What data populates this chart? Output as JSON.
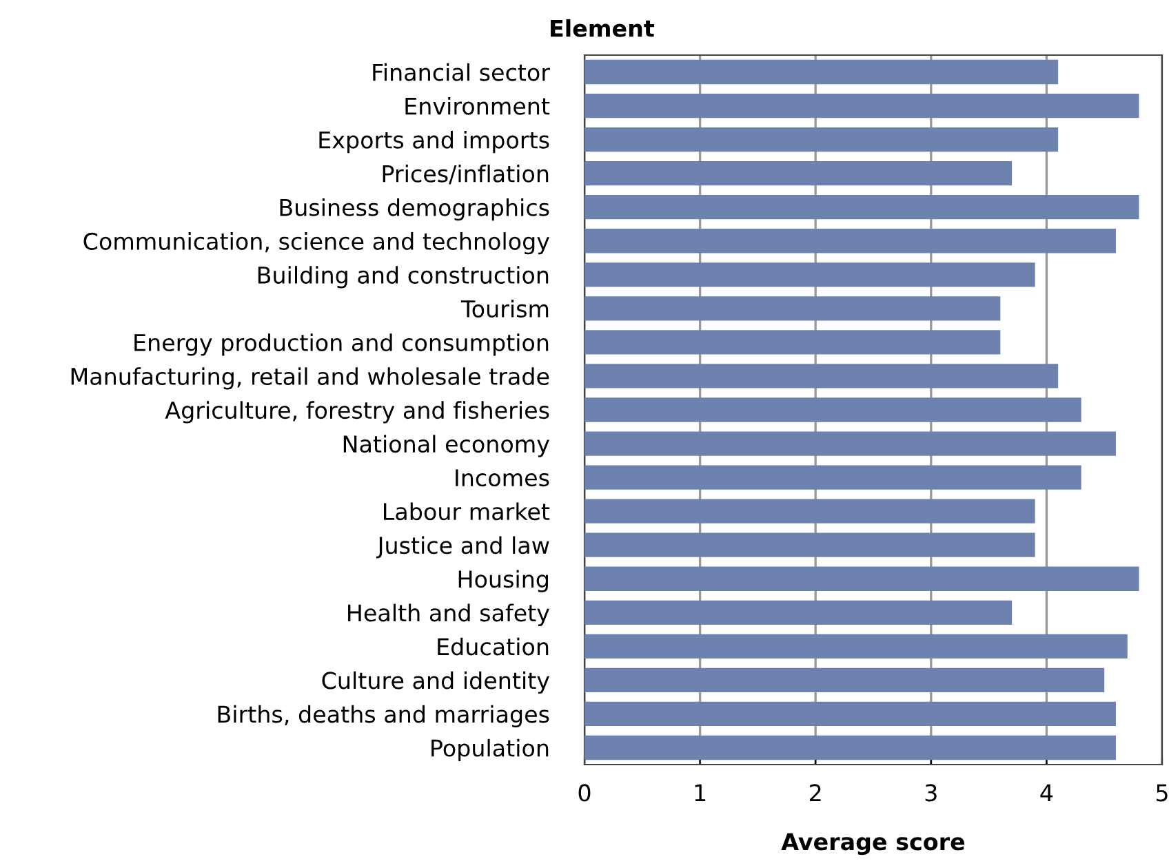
{
  "chart_data": {
    "type": "bar",
    "orientation": "horizontal",
    "title": "Element",
    "xlabel": "Average score",
    "categories": [
      "Financial sector",
      "Environment",
      "Exports and imports",
      "Prices/inflation",
      "Business demographics",
      "Communication, science and technology",
      "Building and construction",
      "Tourism",
      "Energy production and consumption",
      "Manufacturing, retail and wholesale trade",
      "Agriculture, forestry and fisheries",
      "National economy",
      "Incomes",
      "Labour market",
      "Justice and law",
      "Housing",
      "Health and safety",
      "Education",
      "Culture and identity",
      "Births, deaths and marriages",
      "Population"
    ],
    "values": [
      4.1,
      4.8,
      4.1,
      3.7,
      4.8,
      4.6,
      3.9,
      3.6,
      3.6,
      4.1,
      4.3,
      4.6,
      4.3,
      3.9,
      3.9,
      4.8,
      3.7,
      4.7,
      4.5,
      4.6,
      4.6
    ],
    "color": "#6e82b0",
    "xlim": [
      0,
      5
    ],
    "xticks": [
      0,
      1,
      2,
      3,
      4,
      5
    ],
    "grid": "x",
    "legend": false
  }
}
